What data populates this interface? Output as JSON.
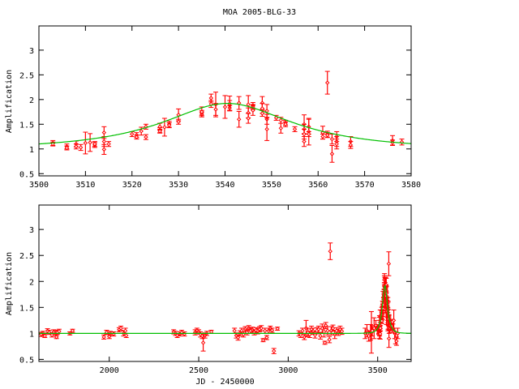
{
  "chart_data": [
    {
      "type": "scatter",
      "title": "MOA 2005-BLG-33",
      "xlabel": "",
      "ylabel": "Amplification",
      "xlim": [
        3500,
        3580
      ],
      "ylim": [
        0.455,
        3.49
      ],
      "xticks": [
        "3500",
        "3510",
        "3520",
        "3530",
        "3540",
        "3550",
        "3560",
        "3570",
        "3580"
      ],
      "yticks": [
        "0.5",
        "1",
        "1.5",
        "2",
        "2.5",
        "3"
      ],
      "grid": false,
      "series": [
        {
          "name": "data",
          "color": "#ff0000",
          "points_format": "[x, y, yerr]",
          "points": [
            [
              3503,
              1.12,
              0.05
            ],
            [
              3503,
              1.1,
              0.04
            ],
            [
              3506,
              1.05,
              0.05
            ],
            [
              3506,
              1.02,
              0.04
            ],
            [
              3508,
              1.1,
              0.06
            ],
            [
              3508,
              1.05,
              0.05
            ],
            [
              3509,
              1.03,
              0.06
            ],
            [
              3510,
              1.12,
              0.22
            ],
            [
              3511,
              1.13,
              0.18
            ],
            [
              3512,
              1.08,
              0.05
            ],
            [
              3512,
              1.1,
              0.05
            ],
            [
              3514,
              1.33,
              0.12
            ],
            [
              3514,
              1.15,
              0.1
            ],
            [
              3514,
              0.99,
              0.1
            ],
            [
              3515,
              1.1,
              0.05
            ],
            [
              3520,
              1.3,
              0.05
            ],
            [
              3521,
              1.28,
              0.05
            ],
            [
              3521,
              1.24,
              0.04
            ],
            [
              3522,
              1.36,
              0.08
            ],
            [
              3523,
              1.45,
              0.05
            ],
            [
              3523,
              1.24,
              0.05
            ],
            [
              3526,
              1.45,
              0.07
            ],
            [
              3526,
              1.38,
              0.05
            ],
            [
              3526,
              1.36,
              0.04
            ],
            [
              3527,
              1.44,
              0.18
            ],
            [
              3528,
              1.5,
              0.06
            ],
            [
              3528,
              1.48,
              0.05
            ],
            [
              3530,
              1.69,
              0.12
            ],
            [
              3530,
              1.55,
              0.05
            ],
            [
              3535,
              1.73,
              0.05
            ],
            [
              3535,
              1.7,
              0.05
            ],
            [
              3535,
              1.75,
              0.1
            ],
            [
              3537,
              1.91,
              0.07
            ],
            [
              3537,
              2.03,
              0.08
            ],
            [
              3538,
              1.9,
              0.25
            ],
            [
              3538,
              1.8,
              0.12
            ],
            [
              3540,
              1.85,
              0.23
            ],
            [
              3541,
              1.88,
              0.1
            ],
            [
              3541,
              1.83,
              0.05
            ],
            [
              3541,
              1.92,
              0.15
            ],
            [
              3543,
              1.93,
              0.13
            ],
            [
              3543,
              1.6,
              0.16
            ],
            [
              3545,
              1.9,
              0.18
            ],
            [
              3545,
              1.73,
              0.1
            ],
            [
              3545,
              1.62,
              0.1
            ],
            [
              3546,
              1.88,
              0.06
            ],
            [
              3546,
              1.85,
              0.05
            ],
            [
              3546,
              1.78,
              0.1
            ],
            [
              3548,
              1.93,
              0.13
            ],
            [
              3548,
              1.82,
              0.1
            ],
            [
              3548,
              1.72,
              0.06
            ],
            [
              3549,
              1.77,
              0.13
            ],
            [
              3549,
              1.6,
              0.1
            ],
            [
              3549,
              1.4,
              0.23
            ],
            [
              3551,
              1.63,
              0.05
            ],
            [
              3552,
              1.58,
              0.06
            ],
            [
              3552,
              1.42,
              0.1
            ],
            [
              3553,
              1.53,
              0.05
            ],
            [
              3553,
              1.5,
              0.05
            ],
            [
              3555,
              1.4,
              0.05
            ],
            [
              3557,
              1.5,
              0.19
            ],
            [
              3557,
              1.4,
              0.1
            ],
            [
              3557,
              1.3,
              0.1
            ],
            [
              3557,
              1.15,
              0.1
            ],
            [
              3558,
              1.45,
              0.15
            ],
            [
              3558,
              1.35,
              0.27
            ],
            [
              3558,
              1.3,
              0.05
            ],
            [
              3561,
              1.33,
              0.13
            ],
            [
              3561,
              1.25,
              0.05
            ],
            [
              3562,
              2.34,
              0.23
            ],
            [
              3562,
              1.3,
              0.06
            ],
            [
              3562,
              1.28,
              0.05
            ],
            [
              3563,
              1.2,
              0.1
            ],
            [
              3563,
              0.9,
              0.17
            ],
            [
              3564,
              1.25,
              0.1
            ],
            [
              3564,
              1.15,
              0.1
            ],
            [
              3564,
              1.1,
              0.1
            ],
            [
              3567,
              1.15,
              0.1
            ],
            [
              3567,
              1.08,
              0.07
            ],
            [
              3576,
              1.17,
              0.1
            ],
            [
              3576,
              1.13,
              0.05
            ],
            [
              3578,
              1.14,
              0.06
            ]
          ]
        },
        {
          "name": "model",
          "color": "#00c000",
          "kind": "microlensing-fit",
          "t0": 3540.5,
          "u0": 0.585,
          "tE": 26
        }
      ]
    },
    {
      "type": "scatter",
      "title": "",
      "xlabel": "JD - 2450000",
      "ylabel": "Amplification",
      "xlim": [
        1607,
        3687
      ],
      "ylim": [
        0.46,
        3.47
      ],
      "xticks": [
        "2000",
        "2500",
        "3000",
        "3500"
      ],
      "yticks": [
        "0.5",
        "1",
        "1.5",
        "2",
        "2.5",
        "3"
      ],
      "grid": false,
      "includes_top_panel_points": true,
      "series": [
        {
          "name": "data",
          "color": "#ff0000",
          "points_format": "[x, y, yerr]",
          "points": [
            [
              1620,
              0.98,
              0.04
            ],
            [
              1630,
              1.0,
              0.04
            ],
            [
              1640,
              0.95,
              0.03
            ],
            [
              1655,
              1.05,
              0.04
            ],
            [
              1665,
              1.02,
              0.04
            ],
            [
              1680,
              0.97,
              0.04
            ],
            [
              1690,
              1.03,
              0.04
            ],
            [
              1700,
              1.0,
              0.04
            ],
            [
              1705,
              0.93,
              0.03
            ],
            [
              1710,
              1.02,
              0.04
            ],
            [
              1720,
              1.04,
              0.04
            ],
            [
              1780,
              1.0,
              0.03
            ],
            [
              1795,
              1.05,
              0.03
            ],
            [
              1970,
              0.93,
              0.04
            ],
            [
              1985,
              1.02,
              0.04
            ],
            [
              2000,
              0.94,
              0.04
            ],
            [
              2005,
              1.0,
              0.04
            ],
            [
              2025,
              0.99,
              0.04
            ],
            [
              2055,
              1.07,
              0.04
            ],
            [
              2065,
              1.1,
              0.04
            ],
            [
              2080,
              1.0,
              0.05
            ],
            [
              2090,
              1.05,
              0.05
            ],
            [
              2095,
              0.96,
              0.04
            ],
            [
              2360,
              1.03,
              0.04
            ],
            [
              2370,
              1.0,
              0.04
            ],
            [
              2380,
              0.96,
              0.04
            ],
            [
              2395,
              0.99,
              0.04
            ],
            [
              2405,
              1.02,
              0.04
            ],
            [
              2420,
              0.99,
              0.04
            ],
            [
              2480,
              1.02,
              0.05
            ],
            [
              2490,
              1.06,
              0.04
            ],
            [
              2500,
              1.03,
              0.04
            ],
            [
              2510,
              0.98,
              0.05
            ],
            [
              2520,
              0.95,
              0.05
            ],
            [
              2525,
              0.82,
              0.16
            ],
            [
              2535,
              0.96,
              0.05
            ],
            [
              2545,
              1.0,
              0.04
            ],
            [
              2570,
              1.03,
              0.03
            ],
            [
              2700,
              1.05,
              0.05
            ],
            [
              2710,
              0.96,
              0.05
            ],
            [
              2720,
              0.92,
              0.05
            ],
            [
              2730,
              1.0,
              0.05
            ],
            [
              2740,
              1.05,
              0.05
            ],
            [
              2750,
              0.98,
              0.05
            ],
            [
              2760,
              1.08,
              0.05
            ],
            [
              2770,
              1.02,
              0.05
            ],
            [
              2780,
              1.1,
              0.05
            ],
            [
              2790,
              1.05,
              0.05
            ],
            [
              2800,
              1.07,
              0.05
            ],
            [
              2810,
              1.02,
              0.05
            ],
            [
              2820,
              1.06,
              0.05
            ],
            [
              2830,
              1.04,
              0.05
            ],
            [
              2840,
              1.08,
              0.05
            ],
            [
              2850,
              1.1,
              0.05
            ],
            [
              2860,
              0.87,
              0.03
            ],
            [
              2870,
              1.05,
              0.05
            ],
            [
              2880,
              0.92,
              0.04
            ],
            [
              2890,
              1.05,
              0.05
            ],
            [
              2900,
              1.1,
              0.04
            ],
            [
              2910,
              1.06,
              0.04
            ],
            [
              2920,
              0.66,
              0.05
            ],
            [
              2940,
              1.09,
              0.03
            ],
            [
              3060,
              1.0,
              0.05
            ],
            [
              3070,
              0.97,
              0.05
            ],
            [
              3080,
              1.05,
              0.05
            ],
            [
              3090,
              0.93,
              0.05
            ],
            [
              3100,
              1.1,
              0.15
            ],
            [
              3110,
              1.02,
              0.08
            ],
            [
              3120,
              0.98,
              0.06
            ],
            [
              3130,
              1.08,
              0.06
            ],
            [
              3140,
              1.04,
              0.06
            ],
            [
              3150,
              0.97,
              0.06
            ],
            [
              3160,
              1.05,
              0.06
            ],
            [
              3170,
              1.08,
              0.06
            ],
            [
              3180,
              0.95,
              0.06
            ],
            [
              3190,
              1.1,
              0.08
            ],
            [
              3200,
              1.03,
              0.1
            ],
            [
              3205,
              0.82,
              0.03
            ],
            [
              3210,
              1.15,
              0.06
            ],
            [
              3220,
              1.05,
              0.08
            ],
            [
              3230,
              0.88,
              0.06
            ],
            [
              3235,
              2.58,
              0.16
            ],
            [
              3240,
              1.05,
              0.08
            ],
            [
              3250,
              1.1,
              0.06
            ],
            [
              3260,
              0.98,
              0.08
            ],
            [
              3270,
              1.05,
              0.06
            ],
            [
              3280,
              1.02,
              0.06
            ],
            [
              3290,
              1.08,
              0.06
            ],
            [
              3300,
              1.04,
              0.06
            ],
            [
              3430,
              1.0,
              0.1
            ],
            [
              3440,
              1.05,
              0.12
            ],
            [
              3450,
              0.95,
              0.1
            ],
            [
              3460,
              1.02,
              0.15
            ],
            [
              3465,
              1.02,
              0.4
            ],
            [
              3470,
              1.05,
              0.1
            ],
            [
              3480,
              1.1,
              0.2
            ],
            [
              3490,
              1.15,
              0.1
            ],
            [
              3585,
              1.1,
              0.08
            ],
            [
              3590,
              1.25,
              0.2
            ],
            [
              3595,
              1.0,
              0.1
            ],
            [
              3600,
              0.9,
              0.1
            ],
            [
              3605,
              0.85,
              0.08
            ],
            [
              3612,
              1.0,
              0.1
            ]
          ]
        },
        {
          "name": "model",
          "color": "#00c000",
          "kind": "microlensing-fit",
          "t0": 3540.5,
          "u0": 0.585,
          "tE": 26
        }
      ]
    }
  ]
}
